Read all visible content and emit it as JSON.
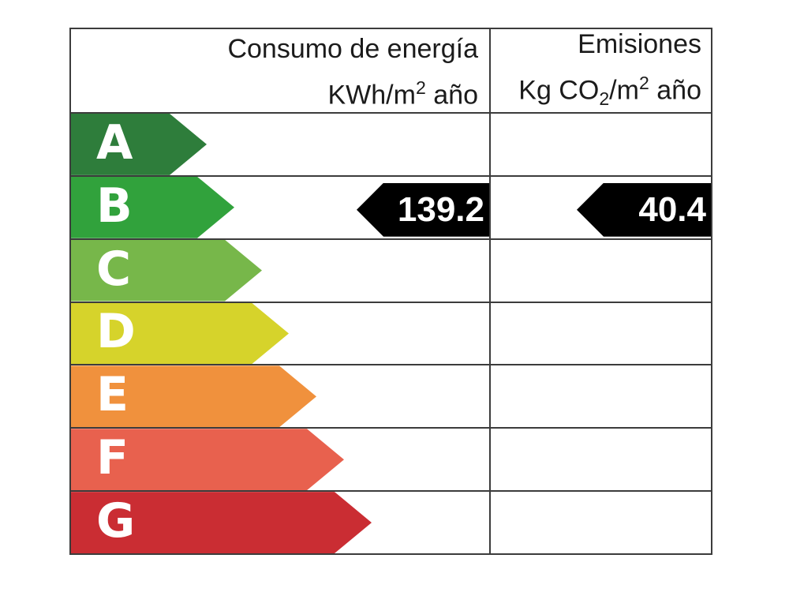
{
  "certificate": {
    "background": "#ffffff",
    "border_color": "#3c3c3c",
    "text_color": "#1b1b1b"
  },
  "header": {
    "energy": {
      "title": "Consumo de energía",
      "unit_pre": "KWh/m",
      "unit_sup": "2",
      "unit_post": " año"
    },
    "emissions": {
      "title": "Emisiones",
      "unit_pre": "Kg CO",
      "unit_sub": "2",
      "unit_mid": "/m",
      "unit_sup": "2",
      "unit_post": " año"
    }
  },
  "ratings": [
    {
      "label": "A",
      "color": "#2e7d3b"
    },
    {
      "label": "B",
      "color": "#31a23c"
    },
    {
      "label": "C",
      "color": "#77b74a"
    },
    {
      "label": "D",
      "color": "#d6d32b"
    },
    {
      "label": "E",
      "color": "#f0913d"
    },
    {
      "label": "F",
      "color": "#e8614e"
    },
    {
      "label": "G",
      "color": "#ca2d33"
    }
  ],
  "result": {
    "rating": "B",
    "energy_value": "139.2",
    "emissions_value": "40.4",
    "marker_color": "#000000",
    "marker_text_color": "#ffffff"
  },
  "chart_data": {
    "type": "bar",
    "categories": [
      "A",
      "B",
      "C",
      "D",
      "E",
      "F",
      "G"
    ],
    "series": [
      {
        "name": "Consumo de energía KWh/m2 año",
        "rating": "B",
        "value": 139.2
      },
      {
        "name": "Emisiones Kg CO2/m2 año",
        "rating": "B",
        "value": 40.4
      }
    ],
    "scale_colors": {
      "A": "#2e7d3b",
      "B": "#31a23c",
      "C": "#77b74a",
      "D": "#d6d32b",
      "E": "#f0913d",
      "F": "#e8614e",
      "G": "#ca2d33"
    },
    "legend_position": "none",
    "grid": false
  }
}
